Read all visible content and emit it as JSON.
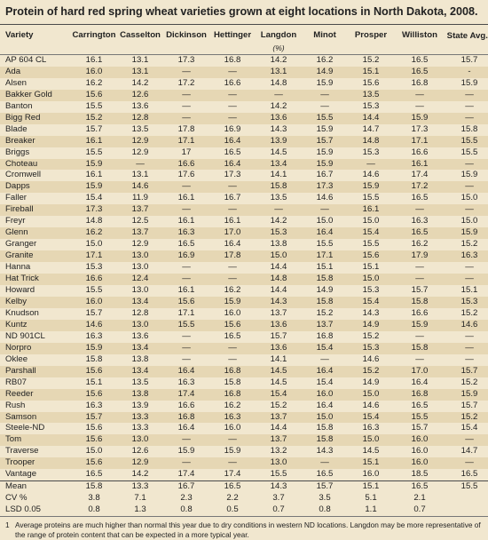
{
  "title": "Protein of hard red spring wheat varieties grown at eight locations in North Dakota, 2008.",
  "columns": [
    "Variety",
    "Carrington",
    "Casselton",
    "Dickinson",
    "Hettinger",
    "Langdon",
    "Minot",
    "Prosper",
    "Williston",
    "State Avg."
  ],
  "state_avg_footnote_mark": "1",
  "unit_label": "(%)",
  "rows": [
    [
      "AP 604 CL",
      "16.1",
      "13.1",
      "17.3",
      "16.8",
      "14.2",
      "16.2",
      "15.2",
      "16.5",
      "15.7"
    ],
    [
      "Ada",
      "16.0",
      "13.1",
      "—",
      "—",
      "13.1",
      "14.9",
      "15.1",
      "16.5",
      "-"
    ],
    [
      "Alsen",
      "16.2",
      "14.2",
      "17.2",
      "16.6",
      "14.8",
      "15.9",
      "15.6",
      "16.8",
      "15.9"
    ],
    [
      "Bakker  Gold",
      "15.6",
      "12.6",
      "—",
      "—",
      "—",
      "—",
      "13.5",
      "—",
      "—"
    ],
    [
      "Banton",
      "15.5",
      "13.6",
      "—",
      "—",
      "14.2",
      "—",
      "15.3",
      "—",
      "—"
    ],
    [
      "Bigg Red",
      "15.2",
      "12.8",
      "—",
      "—",
      "13.6",
      "15.5",
      "14.4",
      "15.9",
      "—"
    ],
    [
      "Blade",
      "15.7",
      "13.5",
      "17.8",
      "16.9",
      "14.3",
      "15.9",
      "14.7",
      "17.3",
      "15.8"
    ],
    [
      "Breaker",
      "16.1",
      "12.9",
      "17.1",
      "16.4",
      "13.9",
      "15.7",
      "14.8",
      "17.1",
      "15.5"
    ],
    [
      "Briggs",
      "15.5",
      "12.9",
      "17",
      "16.5",
      "14.5",
      "15.9",
      "15.3",
      "16.6",
      "15.5"
    ],
    [
      "Choteau",
      "15.9",
      "—",
      "16.6",
      "16.4",
      "13.4",
      "15.9",
      "—",
      "16.1",
      "—"
    ],
    [
      "Cromwell",
      "16.1",
      "13.1",
      "17.6",
      "17.3",
      "14.1",
      "16.7",
      "14.6",
      "17.4",
      "15.9"
    ],
    [
      "Dapps",
      "15.9",
      "14.6",
      "—",
      "—",
      "15.8",
      "17.3",
      "15.9",
      "17.2",
      "—"
    ],
    [
      "Faller",
      "15.4",
      "11.9",
      "16.1",
      "16.7",
      "13.5",
      "14.6",
      "15.5",
      "16.5",
      "15.0"
    ],
    [
      "Fireball",
      "17.3",
      "13.7",
      "—",
      "—",
      "—",
      "—",
      "16.1",
      "—",
      "—"
    ],
    [
      "Freyr",
      "14.8",
      "12.5",
      "16.1",
      "16.1",
      "14.2",
      "15.0",
      "15.0",
      "16.3",
      "15.0"
    ],
    [
      "Glenn",
      "16.2",
      "13.7",
      "16.3",
      "17.0",
      "15.3",
      "16.4",
      "15.4",
      "16.5",
      "15.9"
    ],
    [
      "Granger",
      "15.0",
      "12.9",
      "16.5",
      "16.4",
      "13.8",
      "15.5",
      "15.5",
      "16.2",
      "15.2"
    ],
    [
      "Granite",
      "17.1",
      "13.0",
      "16.9",
      "17.8",
      "15.0",
      "17.1",
      "15.6",
      "17.9",
      "16.3"
    ],
    [
      "Hanna",
      "15.3",
      "13.0",
      "—",
      "—",
      "14.4",
      "15.1",
      "15.1",
      "—",
      "—"
    ],
    [
      "Hat Trick",
      "16.6",
      "12.4",
      "—",
      "—",
      "14.8",
      "15.8",
      "15.0",
      "—",
      "—"
    ],
    [
      "Howard",
      "15.5",
      "13.0",
      "16.1",
      "16.2",
      "14.4",
      "14.9",
      "15.3",
      "15.7",
      "15.1"
    ],
    [
      "Kelby",
      "16.0",
      "13.4",
      "15.6",
      "15.9",
      "14.3",
      "15.8",
      "15.4",
      "15.8",
      "15.3"
    ],
    [
      "Knudson",
      "15.7",
      "12.8",
      "17.1",
      "16.0",
      "13.7",
      "15.2",
      "14.3",
      "16.6",
      "15.2"
    ],
    [
      "Kuntz",
      "14.6",
      "13.0",
      "15.5",
      "15.6",
      "13.6",
      "13.7",
      "14.9",
      "15.9",
      "14.6"
    ],
    [
      "ND 901CL",
      "16.3",
      "13.6",
      "—",
      "16.5",
      "15.7",
      "16.8",
      "15.2",
      "—",
      "—"
    ],
    [
      "Norpro",
      "15.9",
      "13.4",
      "—",
      "—",
      "13.6",
      "15.4",
      "15.3",
      "15.8",
      "—"
    ],
    [
      "Oklee",
      "15.8",
      "13.8",
      "—",
      "—",
      "14.1",
      "—",
      "14.6",
      "—",
      "—"
    ],
    [
      "Parshall",
      "15.6",
      "13.4",
      "16.4",
      "16.8",
      "14.5",
      "16.4",
      "15.2",
      "17.0",
      "15.7"
    ],
    [
      "RB07",
      "15.1",
      "13.5",
      "16.3",
      "15.8",
      "14.5",
      "15.4",
      "14.9",
      "16.4",
      "15.2"
    ],
    [
      "Reeder",
      "15.6",
      "13.8",
      "17.4",
      "16.8",
      "15.4",
      "16.0",
      "15.0",
      "16.8",
      "15.9"
    ],
    [
      "Rush",
      "16.3",
      "13.9",
      "16.6",
      "16.2",
      "15.2",
      "16.4",
      "14.6",
      "16.5",
      "15.7"
    ],
    [
      "Samson",
      "15.7",
      "13.3",
      "16.8",
      "16.3",
      "13.7",
      "15.0",
      "15.4",
      "15.5",
      "15.2"
    ],
    [
      "Steele-ND",
      "15.6",
      "13.3",
      "16.4",
      "16.0",
      "14.4",
      "15.8",
      "16.3",
      "15.7",
      "15.4"
    ],
    [
      "Tom",
      "15.6",
      "13.0",
      "—",
      "—",
      "13.7",
      "15.8",
      "15.0",
      "16.0",
      "—"
    ],
    [
      "Traverse",
      "15.0",
      "12.6",
      "15.9",
      "15.9",
      "13.2",
      "14.3",
      "14.5",
      "16.0",
      "14.7"
    ],
    [
      "Trooper",
      "15.6",
      "12.9",
      "—",
      "—",
      "13.0",
      "—",
      "15.1",
      "16.0",
      "—"
    ],
    [
      "Vantage",
      "16.5",
      "14.2",
      "17.4",
      "17.4",
      "15.5",
      "16.5",
      "16.0",
      "18.5",
      "16.5"
    ]
  ],
  "stats": [
    [
      "Mean",
      "15.8",
      "13.3",
      "16.7",
      "16.5",
      "14.3",
      "15.7",
      "15.1",
      "16.5",
      "15.5"
    ],
    [
      "CV %",
      "3.8",
      "7.1",
      "2.3",
      "2.2",
      "3.7",
      "3.5",
      "5.1",
      "2.1",
      ""
    ],
    [
      "LSD 0.05",
      "0.8",
      "1.3",
      "0.8",
      "0.5",
      "0.7",
      "0.8",
      "1.1",
      "0.7",
      ""
    ]
  ],
  "footnote": {
    "mark": "1",
    "text": "Average proteins are much higher than normal this year due to dry conditions in western ND locations. Langdon may be more representative of the range of protein content that can be expected in a more typical year."
  },
  "colors": {
    "background": "#f1e7cf",
    "band": "#e6d7b4",
    "rule": "#4a4a4a"
  }
}
